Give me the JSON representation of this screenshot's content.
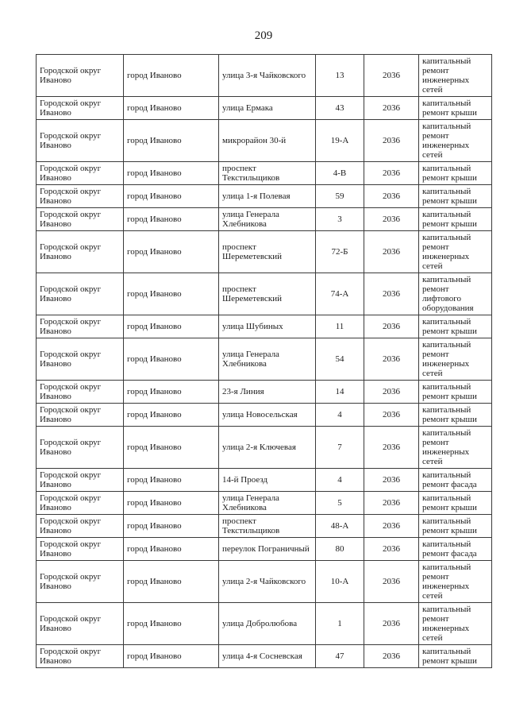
{
  "page": {
    "number": "209"
  },
  "colors": {
    "background": "#ffffff",
    "text": "#1c1c1c",
    "border": "#3a3a3a"
  },
  "table": {
    "columns": [
      "district",
      "city",
      "street",
      "house",
      "year",
      "work"
    ],
    "rows": [
      {
        "district": "Городской округ Иваново",
        "city": "город Иваново",
        "street": "улица 3-я Чайковского",
        "house": "13",
        "year": "2036",
        "work": "капитальный ремонт инженерных сетей"
      },
      {
        "district": "Городской округ Иваново",
        "city": "город Иваново",
        "street": "улица Ермака",
        "house": "43",
        "year": "2036",
        "work": "капитальный ремонт крыши"
      },
      {
        "district": "Городской округ Иваново",
        "city": "город Иваново",
        "street": "микрорайон 30-й",
        "house": "19-А",
        "year": "2036",
        "work": "капитальный ремонт инженерных сетей"
      },
      {
        "district": "Городской округ Иваново",
        "city": "город Иваново",
        "street": "проспект Текстильщиков",
        "house": "4-В",
        "year": "2036",
        "work": "капитальный ремонт крыши"
      },
      {
        "district": "Городской округ Иваново",
        "city": "город Иваново",
        "street": "улица 1-я Полевая",
        "house": "59",
        "year": "2036",
        "work": "капитальный ремонт крыши"
      },
      {
        "district": "Городской округ Иваново",
        "city": "город Иваново",
        "street": "улица Генерала Хлебникова",
        "house": "3",
        "year": "2036",
        "work": "капитальный ремонт крыши"
      },
      {
        "district": "Городской округ Иваново",
        "city": "город Иваново",
        "street": "проспект Шереметевский",
        "house": "72-Б",
        "year": "2036",
        "work": "капитальный ремонт инженерных сетей"
      },
      {
        "district": "Городской округ Иваново",
        "city": "город Иваново",
        "street": "проспект Шереметевский",
        "house": "74-А",
        "year": "2036",
        "work": "капитальный ремонт лифтового оборудования"
      },
      {
        "district": "Городской округ Иваново",
        "city": "город Иваново",
        "street": "улица Шубиных",
        "house": "11",
        "year": "2036",
        "work": "капитальный ремонт крыши"
      },
      {
        "district": "Городской округ Иваново",
        "city": "город Иваново",
        "street": "улица Генерала Хлебникова",
        "house": "54",
        "year": "2036",
        "work": "капитальный ремонт инженерных сетей"
      },
      {
        "district": "Городской округ Иваново",
        "city": "город Иваново",
        "street": "23-я Линия",
        "house": "14",
        "year": "2036",
        "work": "капитальный ремонт крыши"
      },
      {
        "district": "Городской округ Иваново",
        "city": "город Иваново",
        "street": "улица Новосельская",
        "house": "4",
        "year": "2036",
        "work": "капитальный ремонт крыши"
      },
      {
        "district": "Городской округ Иваново",
        "city": "город Иваново",
        "street": "улица 2-я Ключевая",
        "house": "7",
        "year": "2036",
        "work": "капитальный ремонт инженерных сетей"
      },
      {
        "district": "Городской округ Иваново",
        "city": "город Иваново",
        "street": "14-й Проезд",
        "house": "4",
        "year": "2036",
        "work": "капитальный ремонт фасада"
      },
      {
        "district": "Городской округ Иваново",
        "city": "город Иваново",
        "street": "улица Генерала Хлебникова",
        "house": "5",
        "year": "2036",
        "work": "капитальный ремонт крыши"
      },
      {
        "district": "Городской округ Иваново",
        "city": "город Иваново",
        "street": "проспект Текстильщиков",
        "house": "48-А",
        "year": "2036",
        "work": "капитальный ремонт крыши"
      },
      {
        "district": "Городской округ Иваново",
        "city": "город Иваново",
        "street": "переулок Пограничный",
        "house": "80",
        "year": "2036",
        "work": "капитальный ремонт фасада"
      },
      {
        "district": "Городской округ Иваново",
        "city": "город Иваново",
        "street": "улица 2-я Чайковского",
        "house": "10-А",
        "year": "2036",
        "work": "капитальный ремонт инженерных сетей"
      },
      {
        "district": "Городской округ Иваново",
        "city": "город Иваново",
        "street": "улица Добролюбова",
        "house": "1",
        "year": "2036",
        "work": "капитальный ремонт инженерных сетей"
      },
      {
        "district": "Городской округ Иваново",
        "city": "город Иваново",
        "street": "улица 4-я Сосневская",
        "house": "47",
        "year": "2036",
        "work": "капитальный ремонт крыши"
      }
    ]
  }
}
